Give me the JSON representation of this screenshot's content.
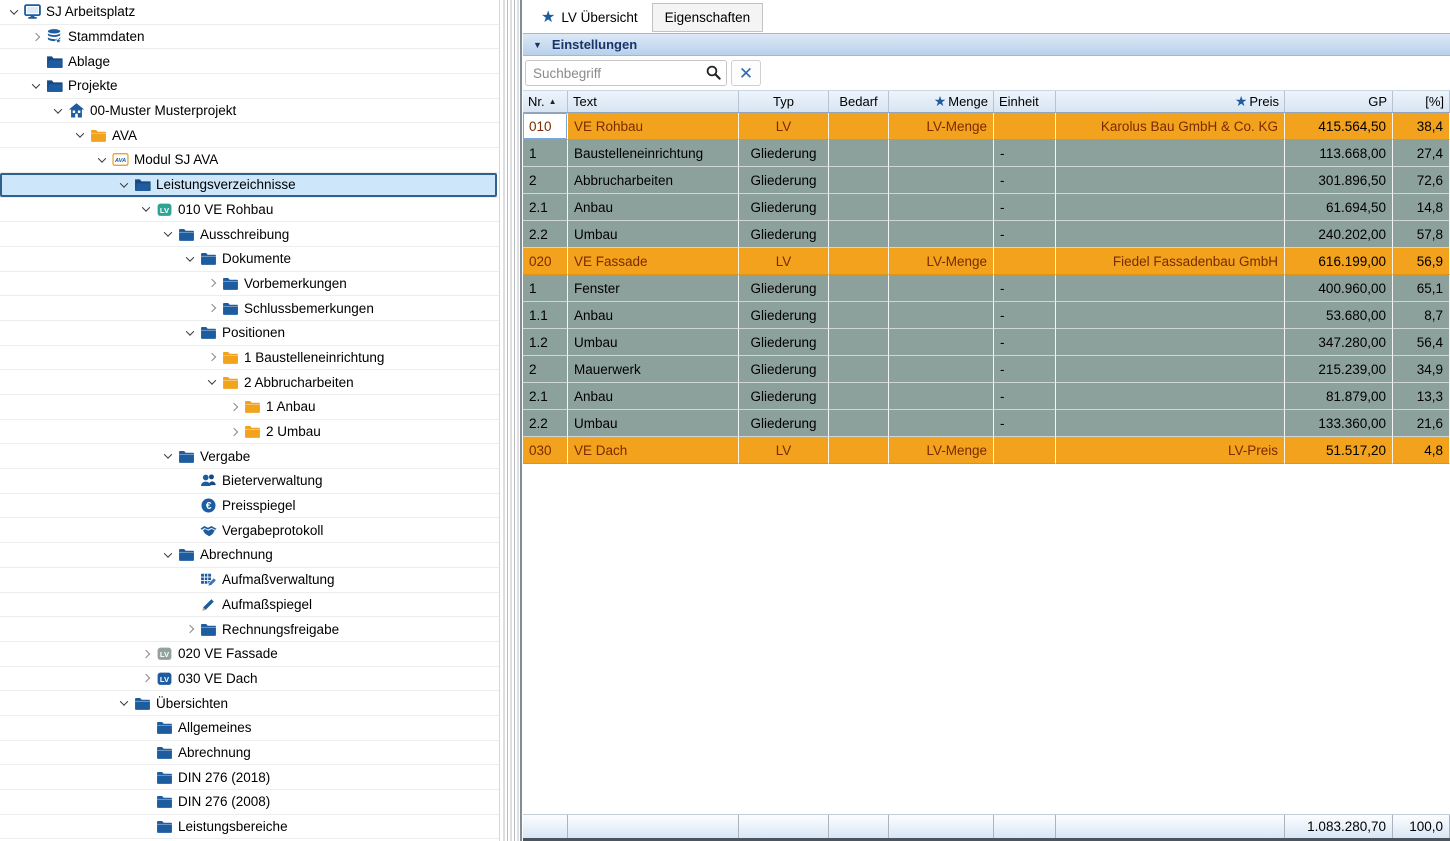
{
  "tree": {
    "items": [
      {
        "label": "SJ Arbeitsplatz",
        "level": 0,
        "state": "expanded",
        "icon": "computer-icon"
      },
      {
        "label": "Stammdaten",
        "level": 1,
        "state": "collapsed",
        "icon": "database-icon"
      },
      {
        "label": "Ablage",
        "level": 1,
        "state": "none",
        "icon": "folder-open-blue-icon"
      },
      {
        "label": "Projekte",
        "level": 1,
        "state": "expanded",
        "icon": "folder-open-blue-icon"
      },
      {
        "label": "00-Muster Musterprojekt",
        "level": 2,
        "state": "expanded",
        "icon": "house-icon"
      },
      {
        "label": "AVA",
        "level": 3,
        "state": "expanded",
        "icon": "folder-orange-icon"
      },
      {
        "label": "Modul SJ AVA",
        "level": 4,
        "state": "expanded",
        "icon": "ava-module-icon"
      },
      {
        "label": "Leistungsverzeichnisse",
        "level": 5,
        "state": "expanded",
        "icon": "folder-open-blue-icon",
        "selected": true
      },
      {
        "label": "010 VE Rohbau",
        "level": 6,
        "state": "expanded",
        "icon": "lv-teal-icon"
      },
      {
        "label": "Ausschreibung",
        "level": 7,
        "state": "expanded",
        "icon": "folder-blue-icon"
      },
      {
        "label": "Dokumente",
        "level": 8,
        "state": "expanded",
        "icon": "folder-blue-icon"
      },
      {
        "label": "Vorbemerkungen",
        "level": 9,
        "state": "collapsed",
        "icon": "folder-blue-icon"
      },
      {
        "label": "Schlussbemerkungen",
        "level": 9,
        "state": "collapsed",
        "icon": "folder-blue-icon"
      },
      {
        "label": "Positionen",
        "level": 8,
        "state": "expanded",
        "icon": "folder-blue-icon"
      },
      {
        "label": "1 Baustelleneinrichtung",
        "level": 9,
        "state": "collapsed",
        "icon": "folder-orange-icon"
      },
      {
        "label": "2 Abbrucharbeiten",
        "level": 9,
        "state": "expanded",
        "icon": "folder-orange-icon"
      },
      {
        "label": "1 Anbau",
        "level": 10,
        "state": "collapsed",
        "icon": "folder-orange-icon"
      },
      {
        "label": "2 Umbau",
        "level": 10,
        "state": "collapsed",
        "icon": "folder-orange-icon"
      },
      {
        "label": "Vergabe",
        "level": 7,
        "state": "expanded",
        "icon": "folder-blue-icon"
      },
      {
        "label": "Bieterverwaltung",
        "level": 8,
        "state": "none",
        "icon": "people-icon"
      },
      {
        "label": "Preisspiegel",
        "level": 8,
        "state": "none",
        "icon": "euro-icon"
      },
      {
        "label": "Vergabeprotokoll",
        "level": 8,
        "state": "none",
        "icon": "handshake-icon"
      },
      {
        "label": "Abrechnung",
        "level": 7,
        "state": "expanded",
        "icon": "folder-blue-icon"
      },
      {
        "label": "Aufmaßverwaltung",
        "level": 8,
        "state": "none",
        "icon": "measure-grid-icon"
      },
      {
        "label": "Aufmaßspiegel",
        "level": 8,
        "state": "none",
        "icon": "pencil-icon"
      },
      {
        "label": "Rechnungsfreigabe",
        "level": 8,
        "state": "collapsed",
        "icon": "folder-blue-icon"
      },
      {
        "label": "020 VE Fassade",
        "level": 6,
        "state": "collapsed",
        "icon": "lv-gray-icon"
      },
      {
        "label": "030 VE Dach",
        "level": 6,
        "state": "collapsed",
        "icon": "lv-blue-icon"
      },
      {
        "label": "Übersichten",
        "level": 5,
        "state": "expanded",
        "icon": "folder-blue-icon"
      },
      {
        "label": "Allgemeines",
        "level": 6,
        "state": "none",
        "icon": "folder-blue-icon"
      },
      {
        "label": "Abrechnung",
        "level": 6,
        "state": "none",
        "icon": "folder-blue-icon"
      },
      {
        "label": "DIN 276 (2018)",
        "level": 6,
        "state": "none",
        "icon": "folder-blue-icon"
      },
      {
        "label": "DIN 276 (2008)",
        "level": 6,
        "state": "none",
        "icon": "folder-blue-icon"
      },
      {
        "label": "Leistungsbereiche",
        "level": 6,
        "state": "none",
        "icon": "folder-blue-icon"
      }
    ]
  },
  "tabs": {
    "lv_uebersicht": {
      "label": "LV Übersicht",
      "star": "★",
      "active": true
    },
    "eigenschaften": {
      "label": "Eigenschaften",
      "active": false
    }
  },
  "settings_panel": {
    "title": "Einstellungen",
    "caret": "▼"
  },
  "search": {
    "placeholder": "Suchbegriff",
    "clear_glyph": "✕"
  },
  "table": {
    "columns": [
      {
        "key": "nr",
        "label": "Nr.",
        "align": "al",
        "sort": "▲"
      },
      {
        "key": "text",
        "label": "Text",
        "align": "al"
      },
      {
        "key": "typ",
        "label": "Typ",
        "align": "ac"
      },
      {
        "key": "bedarf",
        "label": "Bedarf",
        "align": "ac"
      },
      {
        "key": "menge",
        "label": "Menge",
        "align": "ar",
        "star": "★"
      },
      {
        "key": "einheit",
        "label": "Einheit",
        "align": "al"
      },
      {
        "key": "preis",
        "label": "Preis",
        "align": "ar",
        "star": "★"
      },
      {
        "key": "gp",
        "label": "GP",
        "align": "ar"
      },
      {
        "key": "pct",
        "label": "[%]",
        "align": "ar"
      }
    ],
    "rows": [
      {
        "kind": "lv",
        "focus": true,
        "nr": "010",
        "text": "VE Rohbau",
        "typ": "LV",
        "bedarf": "",
        "menge": "LV-Menge",
        "einheit": "",
        "preis": "Karolus Bau GmbH & Co. KG",
        "gp": "415.564,50",
        "pct": "38,4"
      },
      {
        "kind": "g",
        "nr": "1",
        "text": "Baustelleneinrichtung",
        "typ": "Gliederung",
        "bedarf": "",
        "menge": "",
        "einheit": "-",
        "preis": "",
        "gp": "113.668,00",
        "pct": "27,4"
      },
      {
        "kind": "g",
        "nr": "2",
        "text": "Abbrucharbeiten",
        "typ": "Gliederung",
        "bedarf": "",
        "menge": "",
        "einheit": "-",
        "preis": "",
        "gp": "301.896,50",
        "pct": "72,6"
      },
      {
        "kind": "g",
        "nr": "2.1",
        "text": "Anbau",
        "typ": "Gliederung",
        "bedarf": "",
        "menge": "",
        "einheit": "-",
        "preis": "",
        "gp": "61.694,50",
        "pct": "14,8"
      },
      {
        "kind": "g",
        "nr": "2.2",
        "text": "Umbau",
        "typ": "Gliederung",
        "bedarf": "",
        "menge": "",
        "einheit": "-",
        "preis": "",
        "gp": "240.202,00",
        "pct": "57,8"
      },
      {
        "kind": "lv",
        "nr": "020",
        "text": "VE Fassade",
        "typ": "LV",
        "bedarf": "",
        "menge": "LV-Menge",
        "einheit": "",
        "preis": "Fiedel Fassadenbau GmbH",
        "gp": "616.199,00",
        "pct": "56,9"
      },
      {
        "kind": "g",
        "nr": "1",
        "text": "Fenster",
        "typ": "Gliederung",
        "bedarf": "",
        "menge": "",
        "einheit": "-",
        "preis": "",
        "gp": "400.960,00",
        "pct": "65,1"
      },
      {
        "kind": "g",
        "nr": "1.1",
        "text": "Anbau",
        "typ": "Gliederung",
        "bedarf": "",
        "menge": "",
        "einheit": "-",
        "preis": "",
        "gp": "53.680,00",
        "pct": "8,7"
      },
      {
        "kind": "g",
        "nr": "1.2",
        "text": "Umbau",
        "typ": "Gliederung",
        "bedarf": "",
        "menge": "",
        "einheit": "-",
        "preis": "",
        "gp": "347.280,00",
        "pct": "56,4"
      },
      {
        "kind": "g",
        "nr": "2",
        "text": "Mauerwerk",
        "typ": "Gliederung",
        "bedarf": "",
        "menge": "",
        "einheit": "-",
        "preis": "",
        "gp": "215.239,00",
        "pct": "34,9"
      },
      {
        "kind": "g",
        "nr": "2.1",
        "text": "Anbau",
        "typ": "Gliederung",
        "bedarf": "",
        "menge": "",
        "einheit": "-",
        "preis": "",
        "gp": "81.879,00",
        "pct": "13,3"
      },
      {
        "kind": "g",
        "nr": "2.2",
        "text": "Umbau",
        "typ": "Gliederung",
        "bedarf": "",
        "menge": "",
        "einheit": "-",
        "preis": "",
        "gp": "133.360,00",
        "pct": "21,6"
      },
      {
        "kind": "lv",
        "nr": "030",
        "text": "VE Dach",
        "typ": "LV",
        "bedarf": "",
        "menge": "LV-Menge",
        "einheit": "",
        "preis": "LV-Preis",
        "gp": "51.517,20",
        "pct": "4,8"
      }
    ],
    "footer": {
      "gp_total": "1.083.280,70",
      "pct_total": "100,0"
    }
  },
  "colors": {
    "accent_blue": "#1d5c9f",
    "lv_row_bg": "#f2a21c",
    "lv_row_text": "#7a2b00",
    "gliederung_row_bg": "#8da19c",
    "selection_fill": "#cde6fa",
    "selection_border": "#30618e",
    "settings_bar_text": "#17356b",
    "folder_orange": "#f2a21c",
    "folder_blue": "#1d5c9f",
    "lv_badge_teal": "#2ea493",
    "lv_badge_gray": "#93a29c",
    "lv_badge_blue": "#1d5c9f"
  }
}
